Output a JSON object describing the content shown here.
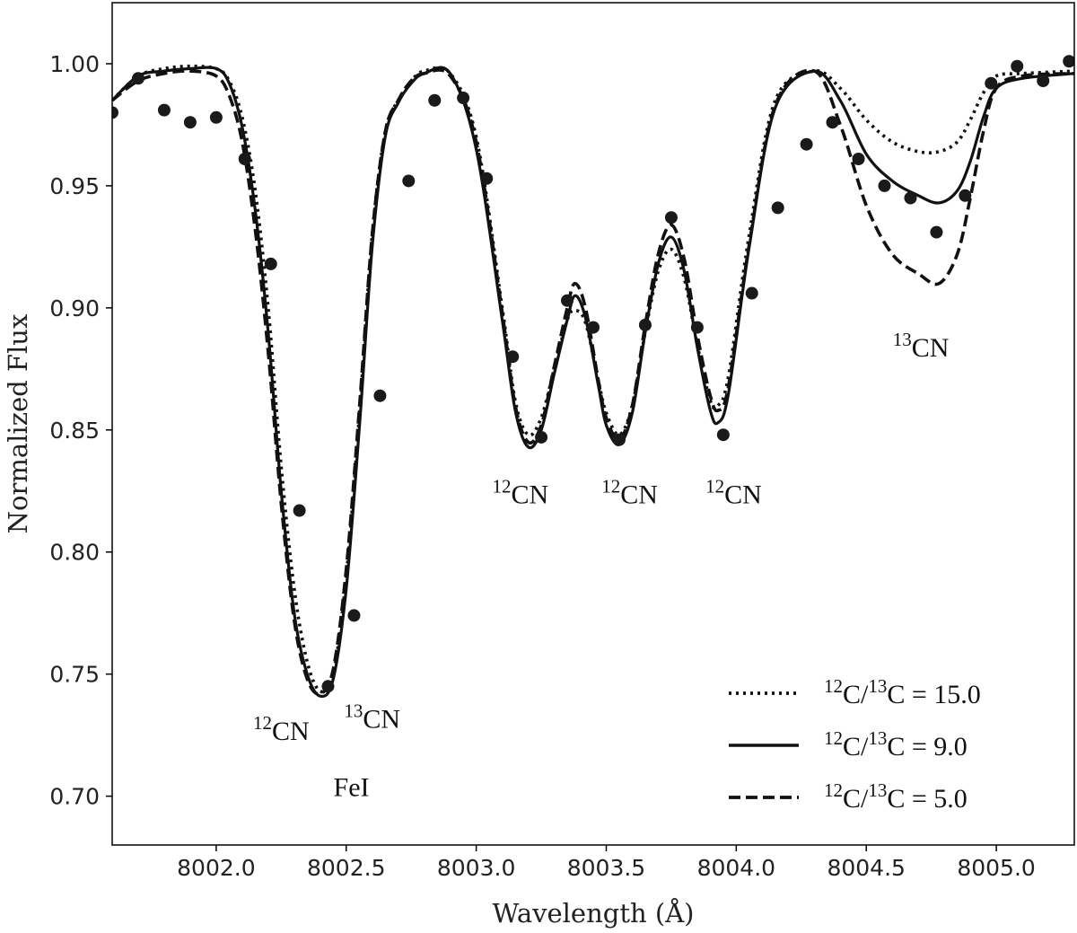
{
  "chart_data": {
    "type": "line",
    "xlabel": "Wavelength (Å)",
    "ylabel": "Normalized Flux",
    "xlim": [
      8001.6,
      8005.3
    ],
    "ylim": [
      0.68,
      1.025
    ],
    "xticks": [
      "8002.0",
      "8002.5",
      "8003.0",
      "8003.5",
      "8004.0",
      "8004.5",
      "8005.0"
    ],
    "xtick_values": [
      8002.0,
      8002.5,
      8003.0,
      8003.5,
      8004.0,
      8004.5,
      8005.0
    ],
    "yticks": [
      "0.70",
      "0.75",
      "0.80",
      "0.85",
      "0.90",
      "0.95",
      "1.00"
    ],
    "ytick_values": [
      0.7,
      0.75,
      0.8,
      0.85,
      0.9,
      0.95,
      1.0
    ],
    "grid": false,
    "legend_position": "bottom-right",
    "series": [
      {
        "name": "12C/13C = 15.0",
        "legend_parts": [
          "12",
          "C/",
          "13",
          "C = 15.0"
        ],
        "style": "dotted",
        "x": [
          8001.6,
          8001.7,
          8001.8,
          8001.9,
          8002.0,
          8002.05,
          8002.1,
          8002.15,
          8002.2,
          8002.25,
          8002.3,
          8002.35,
          8002.4,
          8002.45,
          8002.5,
          8002.55,
          8002.6,
          8002.65,
          8002.7,
          8002.75,
          8002.8,
          8002.9,
          8003.0,
          8003.1,
          8003.15,
          8003.2,
          8003.25,
          8003.3,
          8003.35,
          8003.38,
          8003.42,
          8003.47,
          8003.5,
          8003.55,
          8003.6,
          8003.65,
          8003.7,
          8003.75,
          8003.8,
          8003.85,
          8003.9,
          8003.93,
          8003.97,
          8004.05,
          8004.15,
          8004.3,
          8004.4,
          8004.5,
          8004.6,
          8004.7,
          8004.78,
          8004.85,
          8004.9,
          8004.95,
          8005.0,
          8005.1,
          8005.3
        ],
        "y": [
          0.985,
          0.995,
          0.998,
          0.999,
          0.998,
          0.993,
          0.978,
          0.948,
          0.9,
          0.835,
          0.785,
          0.755,
          0.743,
          0.75,
          0.79,
          0.855,
          0.93,
          0.972,
          0.985,
          0.993,
          0.997,
          0.996,
          0.97,
          0.9,
          0.862,
          0.848,
          0.855,
          0.875,
          0.895,
          0.899,
          0.894,
          0.87,
          0.857,
          0.848,
          0.86,
          0.89,
          0.915,
          0.924,
          0.912,
          0.885,
          0.862,
          0.86,
          0.872,
          0.93,
          0.985,
          0.997,
          0.99,
          0.977,
          0.968,
          0.964,
          0.964,
          0.968,
          0.977,
          0.988,
          0.995,
          0.996,
          0.997
        ]
      },
      {
        "name": "12C/13C = 9.0",
        "legend_parts": [
          "12",
          "C/",
          "13",
          "C = 9.0"
        ],
        "style": "solid",
        "x": [
          8001.6,
          8001.7,
          8001.8,
          8001.9,
          8002.0,
          8002.05,
          8002.1,
          8002.15,
          8002.2,
          8002.25,
          8002.3,
          8002.35,
          8002.4,
          8002.45,
          8002.5,
          8002.55,
          8002.6,
          8002.65,
          8002.7,
          8002.75,
          8002.8,
          8002.9,
          8003.0,
          8003.1,
          8003.15,
          8003.2,
          8003.25,
          8003.3,
          8003.35,
          8003.38,
          8003.42,
          8003.47,
          8003.5,
          8003.55,
          8003.6,
          8003.65,
          8003.7,
          8003.75,
          8003.8,
          8003.85,
          8003.9,
          8003.93,
          8003.97,
          8004.05,
          8004.15,
          8004.3,
          8004.4,
          8004.5,
          8004.6,
          8004.7,
          8004.78,
          8004.85,
          8004.9,
          8004.95,
          8005.0,
          8005.1,
          8005.3
        ],
        "y": [
          0.985,
          0.995,
          0.997,
          0.998,
          0.998,
          0.992,
          0.974,
          0.94,
          0.89,
          0.825,
          0.775,
          0.75,
          0.741,
          0.748,
          0.785,
          0.85,
          0.925,
          0.97,
          0.984,
          0.992,
          0.996,
          0.996,
          0.965,
          0.895,
          0.858,
          0.843,
          0.85,
          0.873,
          0.895,
          0.905,
          0.896,
          0.868,
          0.852,
          0.844,
          0.857,
          0.89,
          0.918,
          0.929,
          0.915,
          0.884,
          0.858,
          0.853,
          0.865,
          0.925,
          0.982,
          0.997,
          0.985,
          0.963,
          0.952,
          0.946,
          0.943,
          0.948,
          0.96,
          0.978,
          0.99,
          0.994,
          0.996
        ]
      },
      {
        "name": "12C/13C = 5.0",
        "legend_parts": [
          "12",
          "C/",
          "13",
          "C = 5.0"
        ],
        "style": "dashed",
        "x": [
          8001.6,
          8001.7,
          8001.8,
          8001.9,
          8002.0,
          8002.05,
          8002.1,
          8002.15,
          8002.2,
          8002.25,
          8002.3,
          8002.35,
          8002.4,
          8002.45,
          8002.5,
          8002.55,
          8002.6,
          8002.65,
          8002.7,
          8002.75,
          8002.8,
          8002.9,
          8003.0,
          8003.1,
          8003.15,
          8003.2,
          8003.25,
          8003.3,
          8003.35,
          8003.38,
          8003.42,
          8003.47,
          8003.5,
          8003.55,
          8003.6,
          8003.65,
          8003.7,
          8003.75,
          8003.8,
          8003.85,
          8003.9,
          8003.93,
          8003.97,
          8004.05,
          8004.15,
          8004.3,
          8004.4,
          8004.5,
          8004.6,
          8004.7,
          8004.78,
          8004.85,
          8004.9,
          8004.95,
          8005.0,
          8005.1,
          8005.3
        ],
        "y": [
          0.985,
          0.993,
          0.996,
          0.997,
          0.995,
          0.987,
          0.968,
          0.932,
          0.882,
          0.82,
          0.772,
          0.748,
          0.742,
          0.752,
          0.793,
          0.858,
          0.93,
          0.972,
          0.985,
          0.993,
          0.996,
          0.995,
          0.968,
          0.898,
          0.86,
          0.845,
          0.852,
          0.876,
          0.9,
          0.91,
          0.9,
          0.87,
          0.855,
          0.846,
          0.86,
          0.893,
          0.922,
          0.934,
          0.92,
          0.889,
          0.864,
          0.858,
          0.868,
          0.926,
          0.983,
          0.997,
          0.975,
          0.942,
          0.922,
          0.914,
          0.91,
          0.922,
          0.945,
          0.972,
          0.99,
          0.995,
          0.996
        ]
      },
      {
        "name": "observed",
        "style": "points",
        "x": [
          8001.6,
          8001.7,
          8001.8,
          8001.9,
          8002.0,
          8002.11,
          8002.21,
          8002.32,
          8002.43,
          8002.53,
          8002.63,
          8002.74,
          8002.84,
          8002.95,
          8003.04,
          8003.14,
          8003.25,
          8003.35,
          8003.45,
          8003.55,
          8003.65,
          8003.75,
          8003.85,
          8003.95,
          8004.06,
          8004.16,
          8004.27,
          8004.37,
          8004.47,
          8004.57,
          8004.67,
          8004.77,
          8004.88,
          8004.98,
          8005.08,
          8005.18,
          8005.28
        ],
        "y": [
          0.98,
          0.994,
          0.981,
          0.976,
          0.978,
          0.961,
          0.918,
          0.817,
          0.745,
          0.774,
          0.864,
          0.952,
          0.985,
          0.986,
          0.953,
          0.88,
          0.847,
          0.903,
          0.892,
          0.846,
          0.893,
          0.937,
          0.892,
          0.848,
          0.906,
          0.941,
          0.967,
          0.976,
          0.961,
          0.95,
          0.945,
          0.931,
          0.946,
          0.992,
          0.999,
          0.993,
          1.001
        ]
      }
    ],
    "annotations": [
      {
        "sup": "12",
        "text": "CN",
        "x": 8002.25,
        "y": 0.723
      },
      {
        "sup": "13",
        "text": "CN",
        "x": 8002.6,
        "y": 0.728
      },
      {
        "sup": "",
        "text": "FeI",
        "x": 8002.52,
        "y": 0.7
      },
      {
        "sup": "12",
        "text": "CN",
        "x": 8003.17,
        "y": 0.82
      },
      {
        "sup": "12",
        "text": "CN",
        "x": 8003.59,
        "y": 0.82
      },
      {
        "sup": "12",
        "text": "CN",
        "x": 8003.99,
        "y": 0.82
      },
      {
        "sup": "13",
        "text": "CN",
        "x": 8004.71,
        "y": 0.88
      }
    ]
  }
}
